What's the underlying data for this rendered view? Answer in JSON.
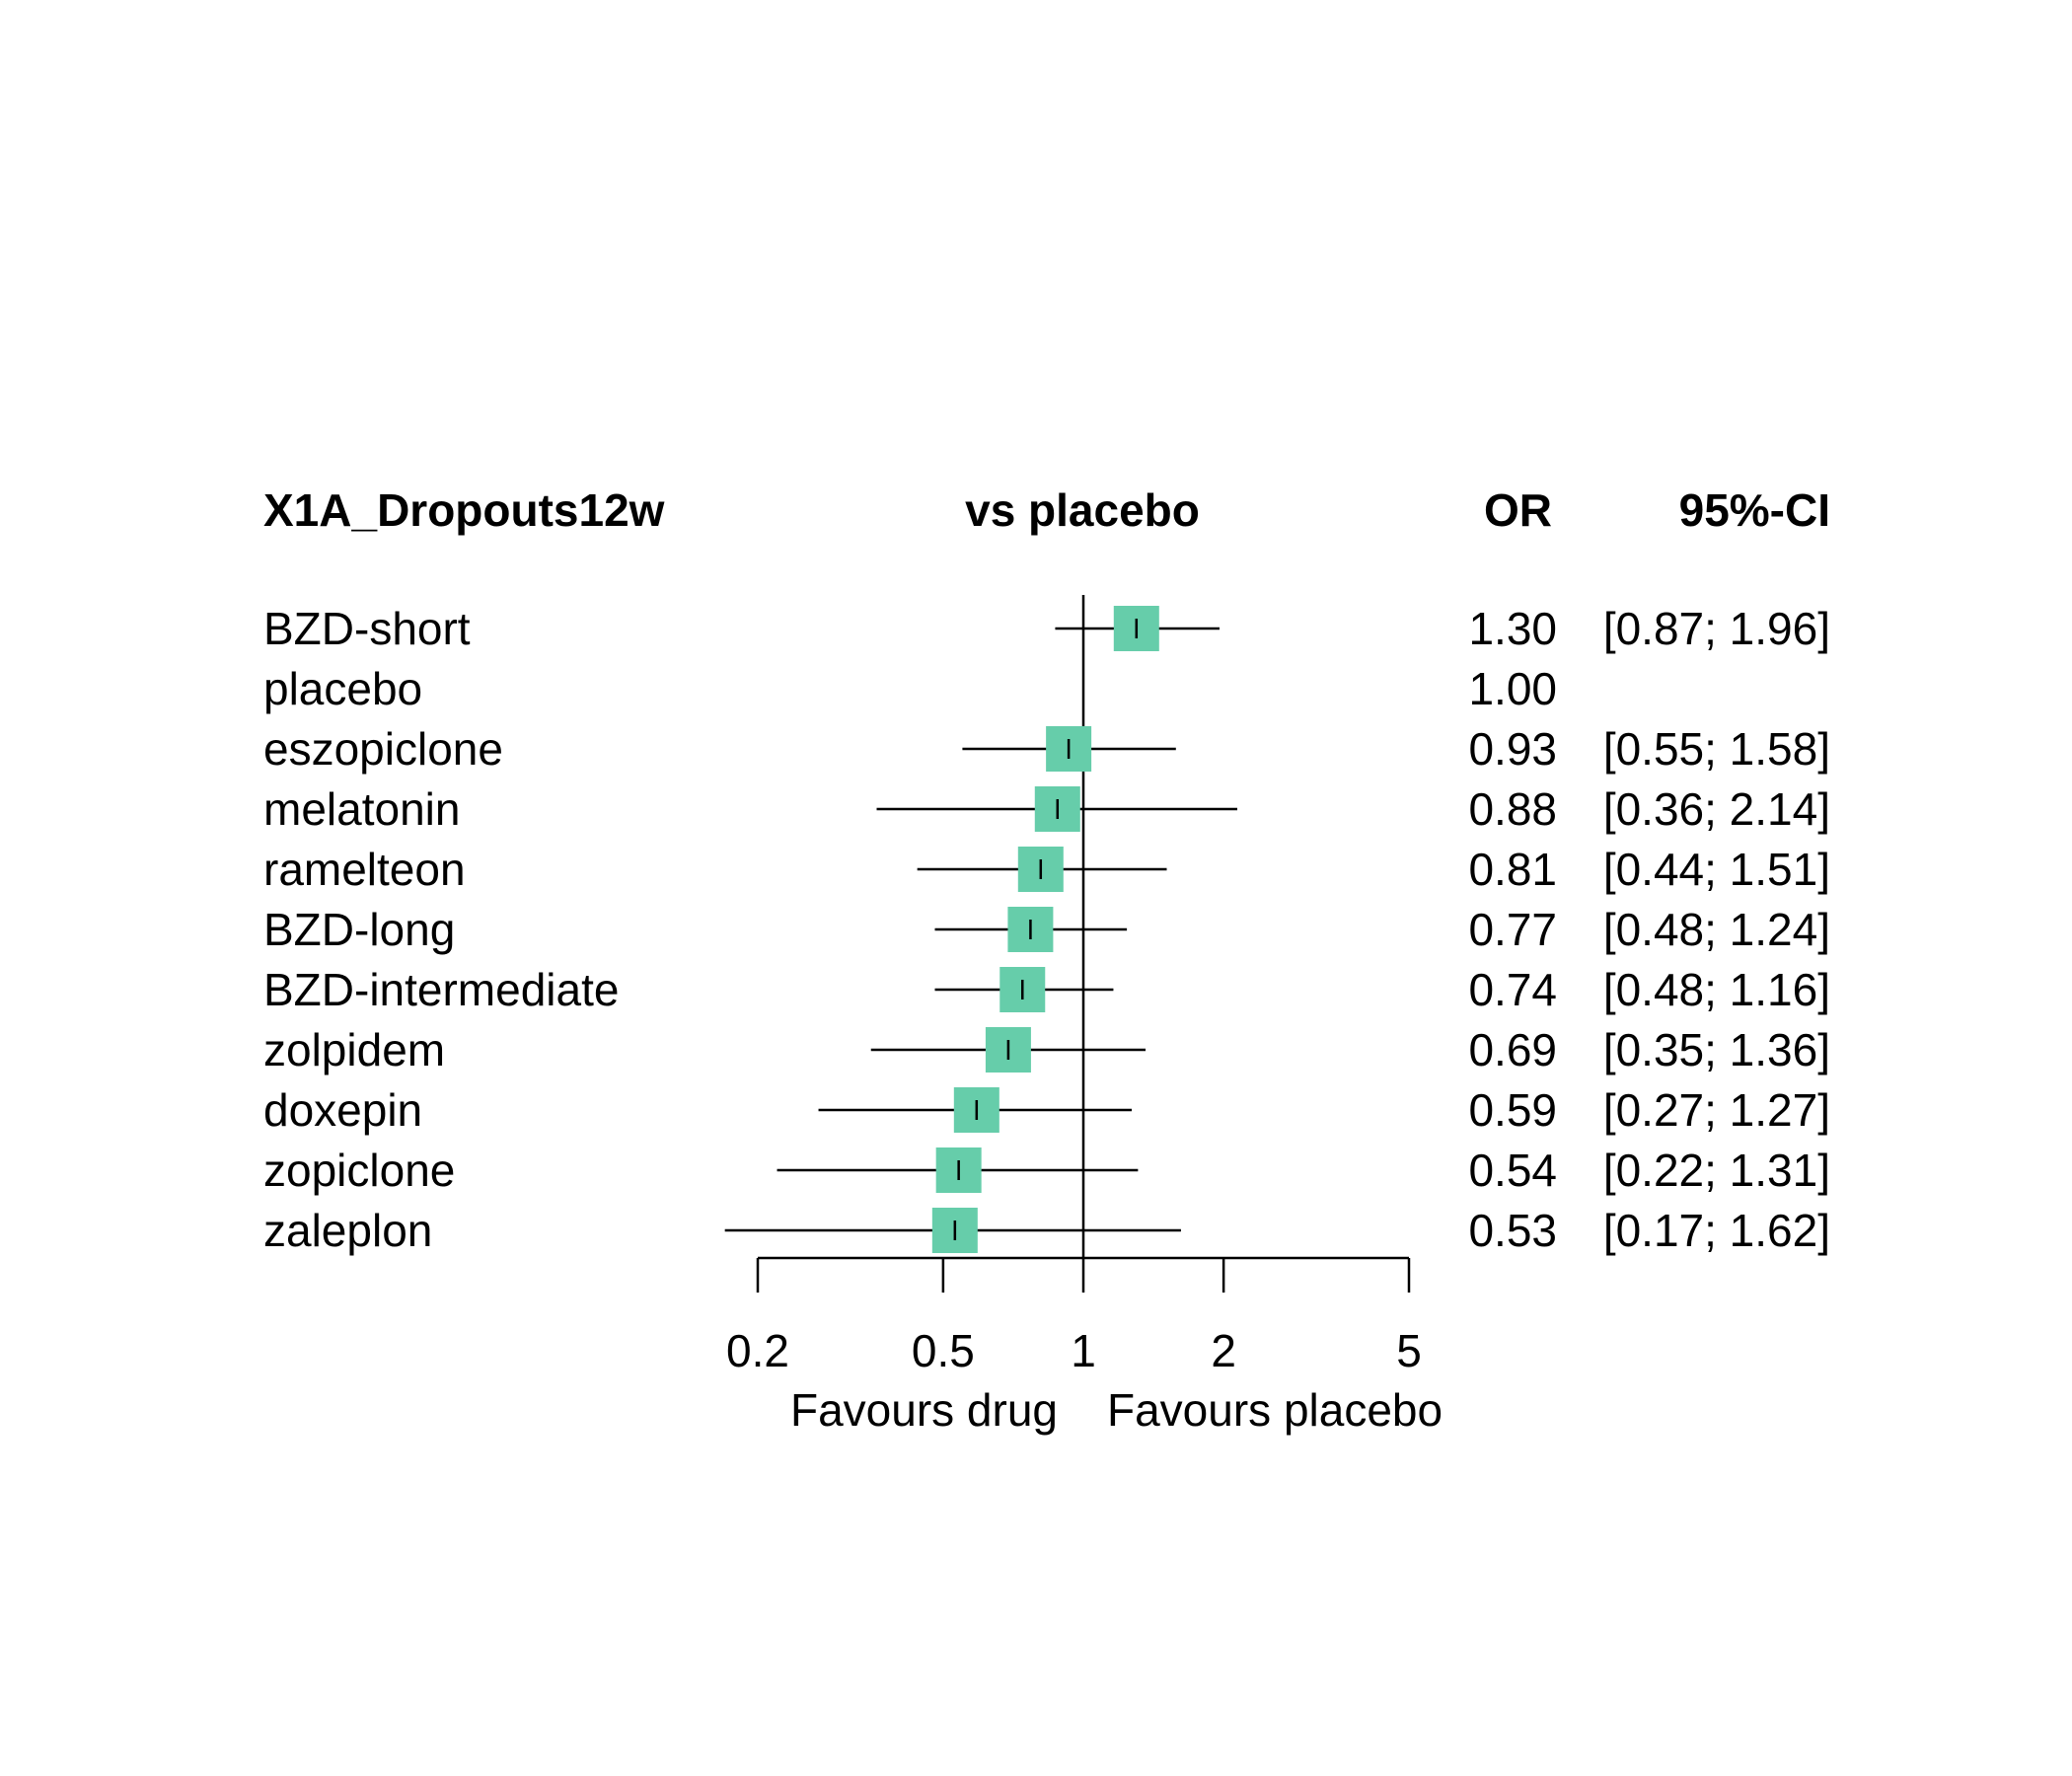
{
  "header": {
    "outcome": "X1A_Dropouts12w",
    "comparison": "vs placebo",
    "or_label": "OR",
    "ci_label": "95%-CI"
  },
  "chart_data": {
    "type": "forest",
    "scale": "log",
    "xlim": [
      0.2,
      5
    ],
    "x_ticks": [
      "0.2",
      "0.5",
      "1",
      "2",
      "5"
    ],
    "x_tick_values": [
      0.2,
      0.5,
      1,
      2,
      5
    ],
    "reference_line": 1,
    "favours_left": "Favours drug",
    "favours_right": "Favours placebo",
    "marker_color": "#66cdaa",
    "rows": [
      {
        "name": "BZD-short",
        "or": 1.3,
        "lower": 0.87,
        "upper": 1.96,
        "or_text": "1.30",
        "ci_text": "[0.87; 1.96]"
      },
      {
        "name": "placebo",
        "or": 1.0,
        "lower": null,
        "upper": null,
        "or_text": "1.00",
        "ci_text": ""
      },
      {
        "name": "eszopiclone",
        "or": 0.93,
        "lower": 0.55,
        "upper": 1.58,
        "or_text": "0.93",
        "ci_text": "[0.55; 1.58]"
      },
      {
        "name": "melatonin",
        "or": 0.88,
        "lower": 0.36,
        "upper": 2.14,
        "or_text": "0.88",
        "ci_text": "[0.36; 2.14]"
      },
      {
        "name": "ramelteon",
        "or": 0.81,
        "lower": 0.44,
        "upper": 1.51,
        "or_text": "0.81",
        "ci_text": "[0.44; 1.51]"
      },
      {
        "name": "BZD-long",
        "or": 0.77,
        "lower": 0.48,
        "upper": 1.24,
        "or_text": "0.77",
        "ci_text": "[0.48; 1.24]"
      },
      {
        "name": "BZD-intermediate",
        "or": 0.74,
        "lower": 0.48,
        "upper": 1.16,
        "or_text": "0.74",
        "ci_text": "[0.48; 1.16]"
      },
      {
        "name": "zolpidem",
        "or": 0.69,
        "lower": 0.35,
        "upper": 1.36,
        "or_text": "0.69",
        "ci_text": "[0.35; 1.36]"
      },
      {
        "name": "doxepin",
        "or": 0.59,
        "lower": 0.27,
        "upper": 1.27,
        "or_text": "0.59",
        "ci_text": "[0.27; 1.27]"
      },
      {
        "name": "zopiclone",
        "or": 0.54,
        "lower": 0.22,
        "upper": 1.31,
        "or_text": "0.54",
        "ci_text": "[0.22; 1.31]"
      },
      {
        "name": "zaleplon",
        "or": 0.53,
        "lower": 0.17,
        "upper": 1.62,
        "or_text": "0.53",
        "ci_text": "[0.17; 1.62]"
      }
    ]
  }
}
